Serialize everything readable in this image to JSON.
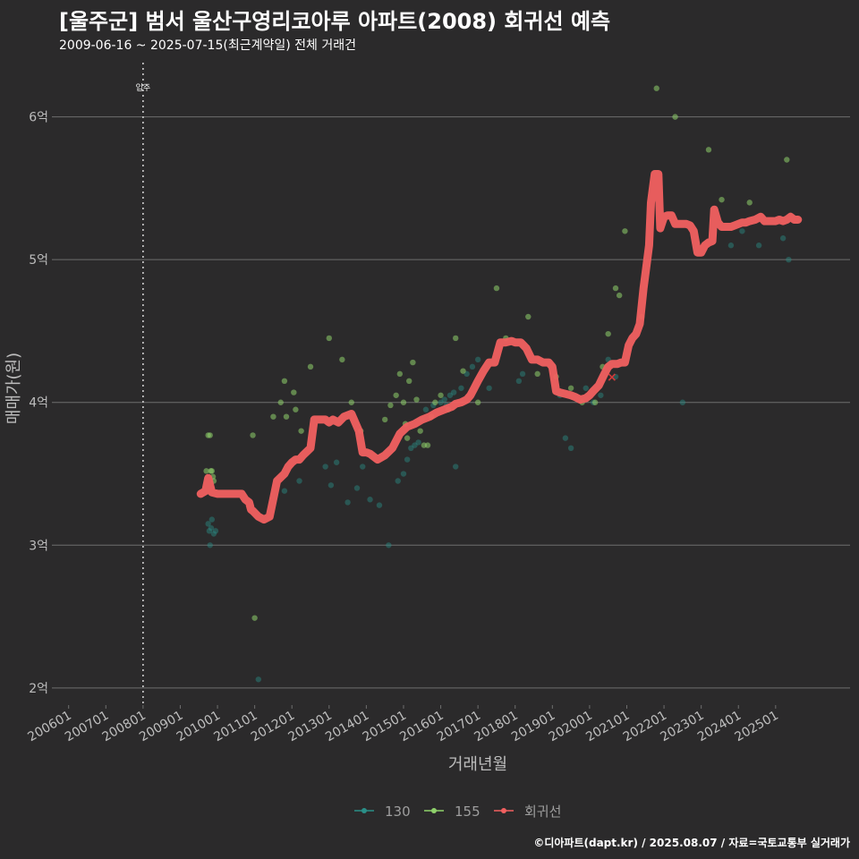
{
  "title": "[울주군] 범서 울산구영리코아루 아파트(2008) 회귀선 예측",
  "subtitle": "2009-06-16 ~ 2025-07-15(최근계약일) 전체 거래건",
  "caption": "©디아파트(dapt.kr) / 2025.08.07 / 자료=국토교통부 실거래가",
  "colors": {
    "background": "#2b2a2b",
    "grid": "#6e6e6e",
    "s130": "#2a8f88",
    "s155": "#8fd16b",
    "regression": "#f16060",
    "vline": "#cfcfcf"
  },
  "chart_data": {
    "type": "scatter",
    "title": "[울주군] 범서 울산구영리코아루 아파트(2008) 회귀선 예측",
    "xlabel": "거래년월",
    "ylabel": "매매가(원)",
    "x_unit": "year (decimal)",
    "y_unit": "억",
    "xlim": [
      2005.55,
      2027.0
    ],
    "ylim": [
      1.88,
      6.38
    ],
    "x_ticks": [
      {
        "value": 2006.0,
        "label": "200601"
      },
      {
        "value": 2007.0,
        "label": "200701"
      },
      {
        "value": 2008.0,
        "label": "200801"
      },
      {
        "value": 2009.0,
        "label": "200901"
      },
      {
        "value": 2010.0,
        "label": "201001"
      },
      {
        "value": 2011.0,
        "label": "201101"
      },
      {
        "value": 2012.0,
        "label": "201201"
      },
      {
        "value": 2013.0,
        "label": "201301"
      },
      {
        "value": 2014.0,
        "label": "201401"
      },
      {
        "value": 2015.0,
        "label": "201501"
      },
      {
        "value": 2016.0,
        "label": "201601"
      },
      {
        "value": 2017.0,
        "label": "201701"
      },
      {
        "value": 2018.0,
        "label": "201801"
      },
      {
        "value": 2019.0,
        "label": "201901"
      },
      {
        "value": 2020.0,
        "label": "202001"
      },
      {
        "value": 2021.0,
        "label": "202101"
      },
      {
        "value": 2022.0,
        "label": "202201"
      },
      {
        "value": 2023.0,
        "label": "202301"
      },
      {
        "value": 2024.0,
        "label": "202401"
      },
      {
        "value": 2025.0,
        "label": "202501"
      }
    ],
    "y_ticks": [
      {
        "value": 2,
        "label": "2억"
      },
      {
        "value": 3,
        "label": "3억"
      },
      {
        "value": 4,
        "label": "4억"
      },
      {
        "value": 5,
        "label": "5억"
      },
      {
        "value": 6,
        "label": "6억"
      }
    ],
    "vline": {
      "x": 2008.0,
      "label": "입주"
    },
    "legend_position": "bottom",
    "series": [
      {
        "name": "130",
        "kind": "points",
        "x": [
          2009.75,
          2009.78,
          2009.8,
          2009.83,
          2009.85,
          2009.9,
          2009.95,
          2011.1,
          2011.8,
          2012.2,
          2012.9,
          2013.05,
          2013.2,
          2013.5,
          2013.75,
          2013.9,
          2014.1,
          2014.35,
          2014.6,
          2014.85,
          2015.0,
          2015.1,
          2015.2,
          2015.3,
          2015.4,
          2015.5,
          2015.6,
          2015.8,
          2016.0,
          2016.1,
          2016.15,
          2016.25,
          2016.35,
          2016.4,
          2016.55,
          2016.7,
          2016.85,
          2017.0,
          2017.3,
          2018.1,
          2018.2,
          2019.2,
          2019.35,
          2019.5,
          2019.9,
          2020.1,
          2020.3,
          2020.5,
          2020.7,
          2022.5,
          2023.8,
          2024.1,
          2024.55,
          2025.2,
          2025.35
        ],
        "y": [
          3.15,
          3.1,
          3.0,
          3.12,
          3.18,
          3.08,
          3.1,
          2.06,
          3.38,
          3.45,
          3.55,
          3.42,
          3.58,
          3.3,
          3.4,
          3.55,
          3.32,
          3.28,
          3.0,
          3.45,
          3.5,
          3.6,
          3.68,
          3.7,
          3.72,
          3.88,
          3.95,
          3.98,
          4.0,
          4.02,
          3.98,
          4.05,
          4.07,
          3.55,
          4.1,
          4.2,
          4.25,
          4.3,
          4.1,
          4.15,
          4.2,
          4.05,
          3.75,
          3.68,
          4.1,
          4.0,
          4.05,
          4.3,
          4.18,
          4.0,
          5.1,
          5.2,
          5.1,
          5.15,
          5.0
        ]
      },
      {
        "name": "155",
        "kind": "points",
        "x": [
          2009.7,
          2009.75,
          2009.8,
          2009.82,
          2009.85,
          2009.88,
          2009.9,
          2010.95,
          2011.0,
          2011.5,
          2011.7,
          2011.8,
          2011.85,
          2012.05,
          2012.1,
          2012.25,
          2012.5,
          2013.0,
          2013.35,
          2013.6,
          2013.85,
          2014.5,
          2014.65,
          2014.8,
          2014.9,
          2015.0,
          2015.05,
          2015.1,
          2015.15,
          2015.25,
          2015.35,
          2015.45,
          2015.55,
          2015.65,
          2015.75,
          2015.85,
          2016.0,
          2016.2,
          2016.4,
          2016.6,
          2017.0,
          2017.5,
          2017.75,
          2018.35,
          2018.6,
          2019.1,
          2019.5,
          2019.8,
          2020.15,
          2020.35,
          2020.5,
          2020.7,
          2020.8,
          2020.95,
          2021.4,
          2021.8,
          2022.3,
          2023.2,
          2023.55,
          2024.3,
          2025.3
        ],
        "y": [
          3.52,
          3.77,
          3.77,
          3.52,
          3.52,
          3.48,
          3.45,
          3.77,
          2.49,
          3.9,
          4.0,
          4.15,
          3.9,
          4.07,
          3.95,
          3.8,
          4.25,
          4.45,
          4.3,
          4.0,
          3.8,
          3.88,
          3.98,
          4.05,
          4.2,
          4.0,
          3.85,
          3.75,
          4.15,
          4.28,
          4.02,
          3.8,
          3.7,
          3.7,
          3.9,
          4.0,
          4.05,
          3.95,
          4.45,
          4.22,
          4.0,
          4.8,
          4.45,
          4.6,
          4.2,
          4.18,
          4.1,
          4.0,
          4.0,
          4.25,
          4.48,
          4.8,
          4.75,
          5.2,
          4.6,
          6.2,
          6.0,
          5.77,
          5.42,
          5.4,
          5.7
        ]
      },
      {
        "name": "회귀선",
        "kind": "line",
        "x": [
          2009.55,
          2009.68,
          2009.75,
          2009.85,
          2010.0,
          2010.1,
          2010.25,
          2010.35,
          2010.45,
          2010.55,
          2010.65,
          2010.75,
          2010.85,
          2010.9,
          2010.95,
          2011.1,
          2011.25,
          2011.4,
          2011.6,
          2011.8,
          2011.9,
          2012.0,
          2012.1,
          2012.2,
          2012.3,
          2012.5,
          2012.6,
          2012.75,
          2012.9,
          2013.0,
          2013.1,
          2013.25,
          2013.4,
          2013.6,
          2013.8,
          2013.9,
          2014.0,
          2014.1,
          2014.3,
          2014.5,
          2014.7,
          2014.9,
          2015.1,
          2015.3,
          2015.5,
          2015.7,
          2015.9,
          2016.1,
          2016.3,
          2016.4,
          2016.55,
          2016.7,
          2016.8,
          2016.9,
          2017.0,
          2017.15,
          2017.3,
          2017.45,
          2017.6,
          2017.75,
          2017.9,
          2018.0,
          2018.15,
          2018.3,
          2018.45,
          2018.6,
          2018.75,
          2018.9,
          2019.0,
          2019.1,
          2019.2,
          2019.35,
          2019.5,
          2019.6,
          2019.75,
          2019.9,
          2020.0,
          2020.1,
          2020.25,
          2020.4,
          2020.5,
          2020.6,
          2020.75,
          2020.85,
          2020.95,
          2021.05,
          2021.15,
          2021.25,
          2021.35,
          2021.45,
          2021.5,
          2021.6,
          2021.65,
          2021.75,
          2021.85,
          2021.9,
          2022.0,
          2022.1,
          2022.2,
          2022.3,
          2022.45,
          2022.6,
          2022.7,
          2022.8,
          2022.9,
          2023.0,
          2023.1,
          2023.2,
          2023.3,
          2023.35,
          2023.45,
          2023.55,
          2023.7,
          2023.8,
          2023.9,
          2024.0,
          2024.1,
          2024.2,
          2024.3,
          2024.45,
          2024.6,
          2024.7,
          2024.8,
          2024.9,
          2025.0,
          2025.1,
          2025.2,
          2025.3,
          2025.4,
          2025.5,
          2025.6
        ],
        "y": [
          3.36,
          3.38,
          3.47,
          3.37,
          3.36,
          3.36,
          3.36,
          3.36,
          3.36,
          3.36,
          3.36,
          3.32,
          3.3,
          3.25,
          3.24,
          3.2,
          3.18,
          3.2,
          3.45,
          3.5,
          3.55,
          3.58,
          3.6,
          3.6,
          3.63,
          3.68,
          3.88,
          3.88,
          3.88,
          3.86,
          3.88,
          3.86,
          3.9,
          3.92,
          3.8,
          3.65,
          3.65,
          3.64,
          3.6,
          3.63,
          3.68,
          3.78,
          3.83,
          3.85,
          3.88,
          3.9,
          3.93,
          3.95,
          3.97,
          3.99,
          4.0,
          4.02,
          4.05,
          4.1,
          4.15,
          4.22,
          4.28,
          4.28,
          4.42,
          4.42,
          4.43,
          4.42,
          4.42,
          4.38,
          4.3,
          4.3,
          4.28,
          4.28,
          4.25,
          4.08,
          4.07,
          4.06,
          4.05,
          4.04,
          4.02,
          4.03,
          4.05,
          4.08,
          4.12,
          4.2,
          4.25,
          4.27,
          4.27,
          4.28,
          4.28,
          4.4,
          4.45,
          4.48,
          4.55,
          4.8,
          4.9,
          5.1,
          5.4,
          5.6,
          5.6,
          5.22,
          5.3,
          5.31,
          5.31,
          5.25,
          5.25,
          5.25,
          5.24,
          5.2,
          5.05,
          5.05,
          5.1,
          5.12,
          5.13,
          5.35,
          5.26,
          5.23,
          5.23,
          5.23,
          5.24,
          5.25,
          5.26,
          5.26,
          5.27,
          5.28,
          5.3,
          5.27,
          5.27,
          5.27,
          5.27,
          5.28,
          5.27,
          5.28,
          5.3,
          5.28,
          5.28
        ]
      }
    ],
    "marker": {
      "label": "×",
      "x": 2020.6,
      "y": 4.18
    }
  }
}
